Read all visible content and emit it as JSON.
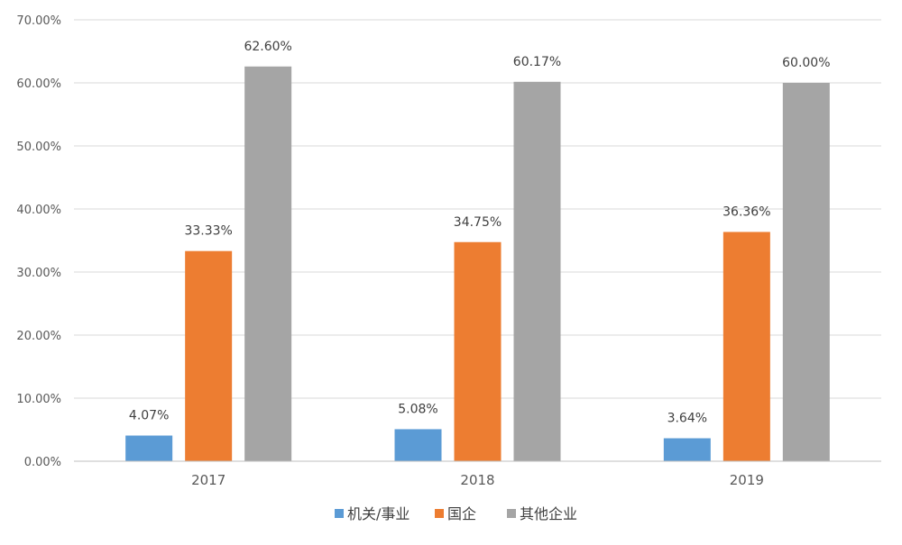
{
  "chart_data": {
    "type": "bar",
    "title": "",
    "xlabel": "",
    "ylabel": "",
    "categories": [
      "2017",
      "2018",
      "2019"
    ],
    "series": [
      {
        "name": "机关/事业",
        "color": "#5b9bd5",
        "values": [
          4.07,
          5.08,
          3.64
        ],
        "labels": [
          "4.07%",
          "5.08%",
          "3.64%"
        ]
      },
      {
        "name": "国企",
        "color": "#ed7d31",
        "values": [
          33.33,
          34.75,
          36.36
        ],
        "labels": [
          "33.33%",
          "34.75%",
          "36.36%"
        ]
      },
      {
        "name": "其他企业",
        "color": "#a5a5a5",
        "values": [
          62.6,
          60.17,
          60.0
        ],
        "labels": [
          "62.60%",
          "60.17%",
          "60.00%"
        ]
      }
    ],
    "ylim": [
      0,
      70
    ],
    "yticks": [
      0,
      10,
      20,
      30,
      40,
      50,
      60,
      70
    ],
    "ytick_labels": [
      "0.00%",
      "10.00%",
      "20.00%",
      "30.00%",
      "40.00%",
      "50.00%",
      "60.00%",
      "70.00%"
    ],
    "grid": true,
    "legend_position": "bottom"
  }
}
